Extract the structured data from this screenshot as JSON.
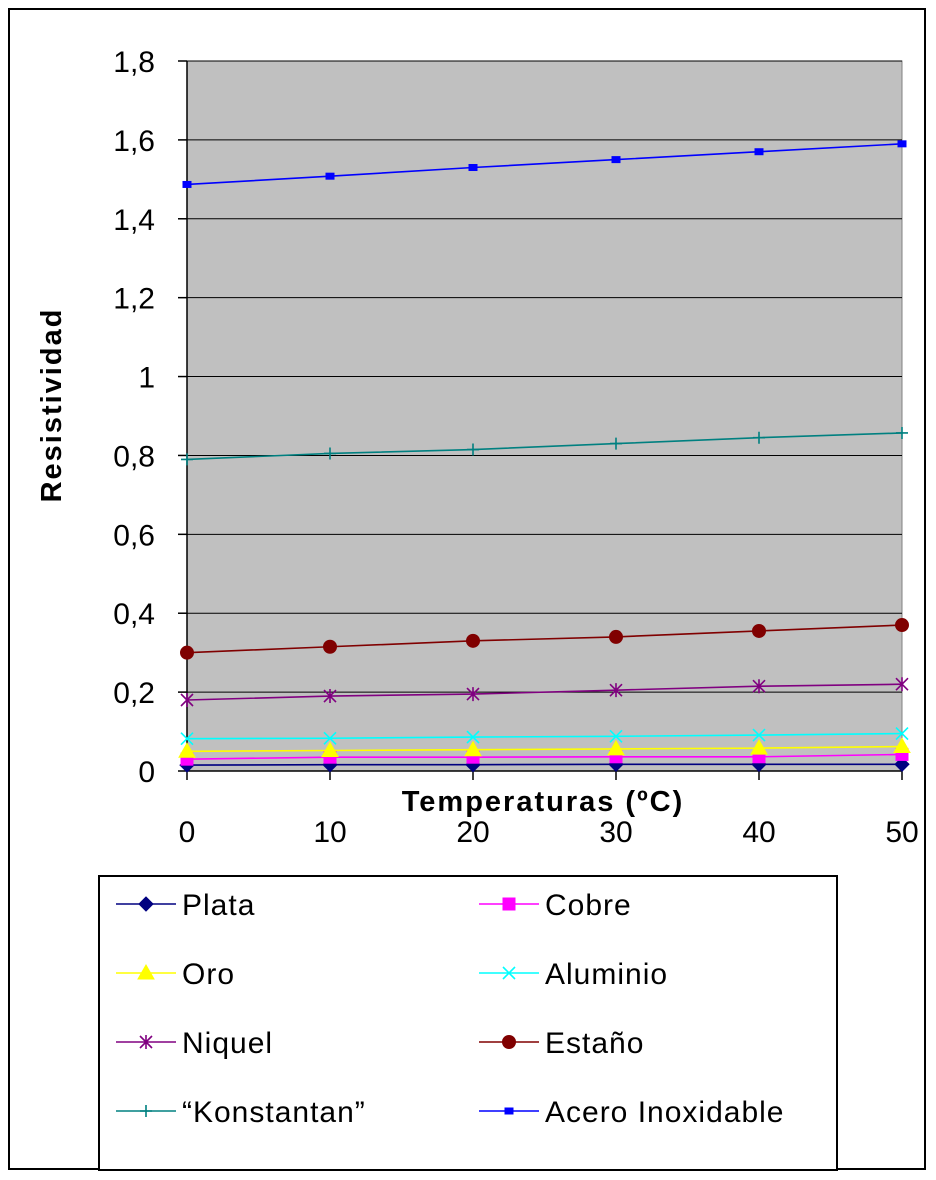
{
  "chart_data": {
    "type": "line",
    "title": "",
    "xlabel": "Temperaturas (ºC)",
    "ylabel": "Resistividad",
    "x": [
      0,
      10,
      20,
      30,
      40,
      50
    ],
    "x_tick_labels": [
      "0",
      "10",
      "20",
      "30",
      "40",
      "50"
    ],
    "xlim": [
      0,
      50
    ],
    "ylim": [
      0,
      1.8
    ],
    "y_ticks": [
      0,
      0.2,
      0.4,
      0.6,
      0.8,
      1.0,
      1.2,
      1.4,
      1.6,
      1.8
    ],
    "y_tick_labels": [
      "0",
      "0,2",
      "0,4",
      "0,6",
      "0,8",
      "1",
      "1,2",
      "1,4",
      "1,6",
      "1,8"
    ],
    "grid": true,
    "plot_background": "#c0c0c0",
    "legend_position": "bottom",
    "series": [
      {
        "name": "Plata",
        "color": "#000080",
        "marker": "diamond",
        "values": [
          0.015,
          0.016,
          0.016,
          0.017,
          0.017,
          0.017
        ]
      },
      {
        "name": "Cobre",
        "color": "#ff00ff",
        "marker": "square",
        "values": [
          0.03,
          0.035,
          0.035,
          0.036,
          0.036,
          0.042
        ]
      },
      {
        "name": "Oro",
        "color": "#ffff00",
        "marker": "triangle",
        "values": [
          0.05,
          0.052,
          0.054,
          0.056,
          0.058,
          0.062
        ]
      },
      {
        "name": "Aluminio",
        "color": "#00ffff",
        "marker": "x",
        "values": [
          0.082,
          0.083,
          0.086,
          0.088,
          0.091,
          0.095
        ]
      },
      {
        "name": "Niquel",
        "color": "#800080",
        "marker": "asterisk",
        "values": [
          0.18,
          0.19,
          0.195,
          0.205,
          0.215,
          0.22
        ]
      },
      {
        "name": "Estaño",
        "color": "#800000",
        "marker": "circle",
        "values": [
          0.3,
          0.315,
          0.33,
          0.34,
          0.355,
          0.37
        ]
      },
      {
        "name": "“Konstantan”",
        "color": "#008080",
        "marker": "plus",
        "values": [
          0.79,
          0.805,
          0.815,
          0.83,
          0.845,
          0.857
        ]
      },
      {
        "name": "Acero Inoxidable",
        "color": "#0000ff",
        "marker": "small-square",
        "values": [
          1.487,
          1.508,
          1.53,
          1.55,
          1.57,
          1.59
        ]
      }
    ]
  }
}
